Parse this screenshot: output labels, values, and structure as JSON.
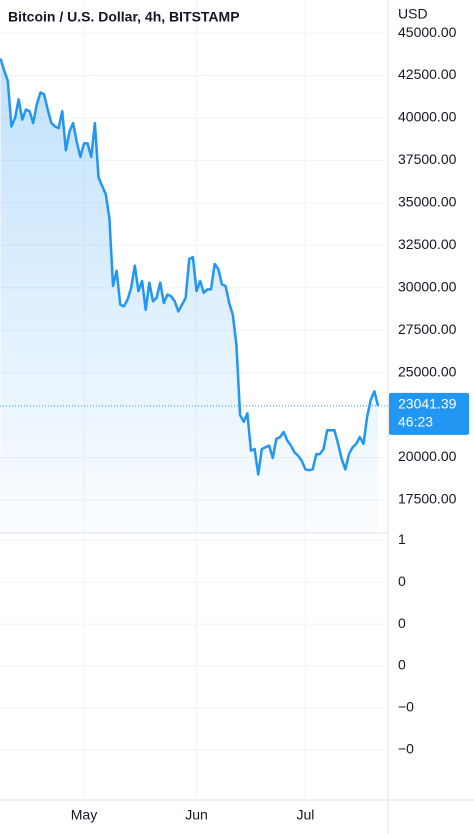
{
  "chart_data": {
    "type": "line",
    "title": "Bitcoin / U.S. Dollar, 4h, BITSTAMP",
    "currency": "USD",
    "color": "#2196f3",
    "grid": true,
    "categories": [
      null,
      null,
      null,
      null,
      null,
      null,
      null,
      null,
      null,
      null,
      null,
      null,
      null,
      null,
      null,
      null,
      null,
      null,
      null,
      null,
      null,
      null,
      null,
      "May",
      null,
      null,
      null,
      null,
      null,
      null,
      null,
      null,
      null,
      null,
      null,
      null,
      null,
      null,
      null,
      null,
      null,
      null,
      null,
      null,
      null,
      null,
      null,
      null,
      null,
      null,
      null,
      null,
      null,
      null,
      "Jun",
      null,
      null,
      null,
      null,
      null,
      null,
      null,
      null,
      null,
      null,
      null,
      null,
      null,
      null,
      null,
      null,
      null,
      null,
      null,
      null,
      null,
      null,
      null,
      null,
      null,
      null,
      null,
      null,
      null,
      "Jul",
      null,
      null,
      null,
      null,
      null,
      null,
      null,
      null,
      null,
      null,
      null,
      null,
      null,
      null,
      null,
      null,
      null,
      null,
      null,
      null
    ],
    "values": [
      43500,
      42800,
      42200,
      39500,
      40000,
      41100,
      39900,
      40500,
      40400,
      39700,
      40800,
      41500,
      41400,
      40500,
      39700,
      39500,
      39400,
      40400,
      38100,
      39200,
      39700,
      38600,
      37700,
      38500,
      38500,
      37700,
      39700,
      36500,
      36000,
      35500,
      34100,
      30100,
      31000,
      29000,
      28900,
      29300,
      30000,
      31300,
      29800,
      30400,
      28700,
      30300,
      29200,
      29400,
      30300,
      29100,
      29600,
      29500,
      29200,
      28600,
      29000,
      29400,
      31700,
      31800,
      29800,
      30400,
      29700,
      29900,
      29900,
      31400,
      31100,
      30200,
      30100,
      29100,
      28400,
      26600,
      22500,
      22100,
      22600,
      20400,
      20500,
      19000,
      20500,
      20600,
      20700,
      19970,
      21100,
      21200,
      21500,
      21000,
      20700,
      20300,
      20100,
      19800,
      19300,
      19250,
      19300,
      20200,
      20200,
      20500,
      21600,
      21600,
      21600,
      20800,
      19900,
      19300,
      20200,
      20600,
      20800,
      21200,
      20800,
      22400,
      23400,
      23900,
      23041
    ],
    "ylim": [
      15550,
      46950
    ],
    "yticks": [
      {
        "value": 45000,
        "label": "45000.00"
      },
      {
        "value": 42500,
        "label": "42500.00"
      },
      {
        "value": 40000,
        "label": "40000.00"
      },
      {
        "value": 37500,
        "label": "37500.00"
      },
      {
        "value": 35000,
        "label": "35000.00"
      },
      {
        "value": 32500,
        "label": "32500.00"
      },
      {
        "value": 30000,
        "label": "30000.00"
      },
      {
        "value": 27500,
        "label": "27500.00"
      },
      {
        "value": 25000,
        "label": "25000.00"
      },
      {
        "value": 20000,
        "label": "20000.00"
      },
      {
        "value": 17500,
        "label": "17500.00"
      }
    ],
    "last_price": 23041.39,
    "countdown": "46:23",
    "pane2": {
      "ylim": [
        -1.28,
        1.27
      ],
      "yticks": [
        {
          "value": 1.2,
          "label": "1"
        },
        {
          "value": 0.8,
          "label": "0"
        },
        {
          "value": 0.4,
          "label": "0"
        },
        {
          "value": 0,
          "label": "0"
        },
        {
          "value": -0.4,
          "label": "−0"
        },
        {
          "value": -0.8,
          "label": "−0"
        }
      ]
    }
  }
}
